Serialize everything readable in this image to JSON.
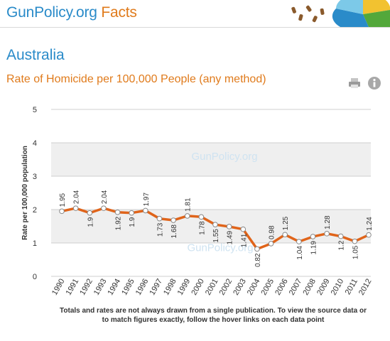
{
  "header": {
    "brand_main": "GunPolicy.org",
    "brand_accent": "Facts"
  },
  "page": {
    "country": "Australia",
    "subtitle": "Rate of Homicide per 100,000 People (any method)",
    "footnote": "Totals and rates are not always drawn from a single publication. To view the source data or to match figures exactly, follow the hover links on each data point"
  },
  "icons": {
    "print": "printer-icon",
    "info": "info-icon"
  },
  "colors": {
    "brand_blue": "#2a8bc9",
    "brand_orange": "#e07b1c",
    "series_line": "#e0641a",
    "band": "#efefef"
  },
  "chart_data": {
    "type": "line",
    "title": "Rate of Homicide per 100,000 People (any method)",
    "ylabel": "Rate per 100,000 population",
    "xlabel": "",
    "ylim": [
      0,
      5
    ],
    "yticks": [
      0,
      1,
      2,
      3,
      4,
      5
    ],
    "grid": true,
    "legend": "none",
    "watermark": "GunPolicy.org",
    "x": [
      "1990",
      "1991",
      "1992",
      "1993",
      "1994",
      "1995",
      "1996",
      "1997",
      "1998",
      "1999",
      "2000",
      "2001",
      "2002",
      "2003",
      "2004",
      "2005",
      "2006",
      "2007",
      "2008",
      "2009",
      "2010",
      "2011",
      "2012"
    ],
    "series": [
      {
        "values": [
          1.95,
          2.04,
          1.9,
          2.04,
          1.92,
          1.9,
          1.97,
          1.73,
          1.68,
          1.81,
          1.78,
          1.55,
          1.49,
          1.41,
          0.82,
          0.98,
          1.25,
          1.04,
          1.19,
          1.28,
          1.2,
          1.05,
          1.24
        ],
        "labels": [
          "1.95",
          "2.04",
          "1.9",
          "2.04",
          "1.92",
          "1.9",
          "1.97",
          "1.73",
          "1.68",
          "1.81",
          "1.78",
          "1.55",
          "1.49",
          "1.41",
          "0.82",
          "0.98",
          "1.25",
          "1.04",
          "1.19",
          "1.28",
          "1.2",
          "1.05",
          "1.24"
        ]
      }
    ]
  }
}
